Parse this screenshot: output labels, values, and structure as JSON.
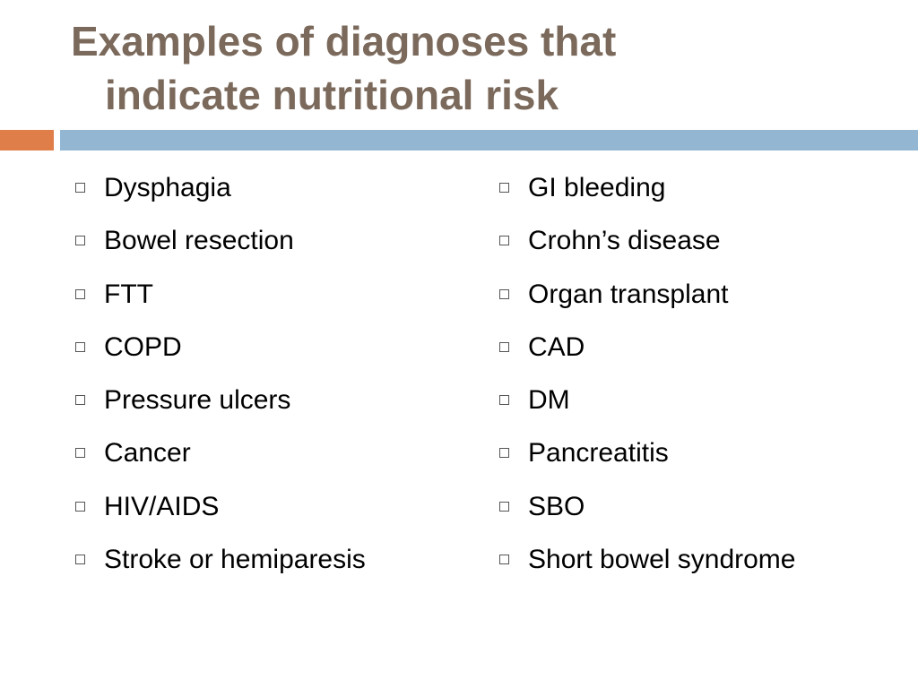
{
  "slide": {
    "title_line1": "Examples of diagnoses that",
    "title_line2": "indicate nutritional risk",
    "colors": {
      "title": "#7b6a5c",
      "accent_orange": "#e07e4a",
      "accent_blue": "#93b7d3",
      "bullet_border": "#555555"
    },
    "bullet_icon": "hollow-square",
    "left_items": [
      "Dysphagia",
      "Bowel resection",
      "FTT",
      "COPD",
      "Pressure ulcers",
      "Cancer",
      "HIV/AIDS",
      "Stroke or hemiparesis"
    ],
    "right_items": [
      "GI bleeding",
      "Crohn’s disease",
      "Organ transplant",
      "CAD",
      "DM",
      "Pancreatitis",
      "SBO",
      "Short bowel syndrome"
    ]
  }
}
